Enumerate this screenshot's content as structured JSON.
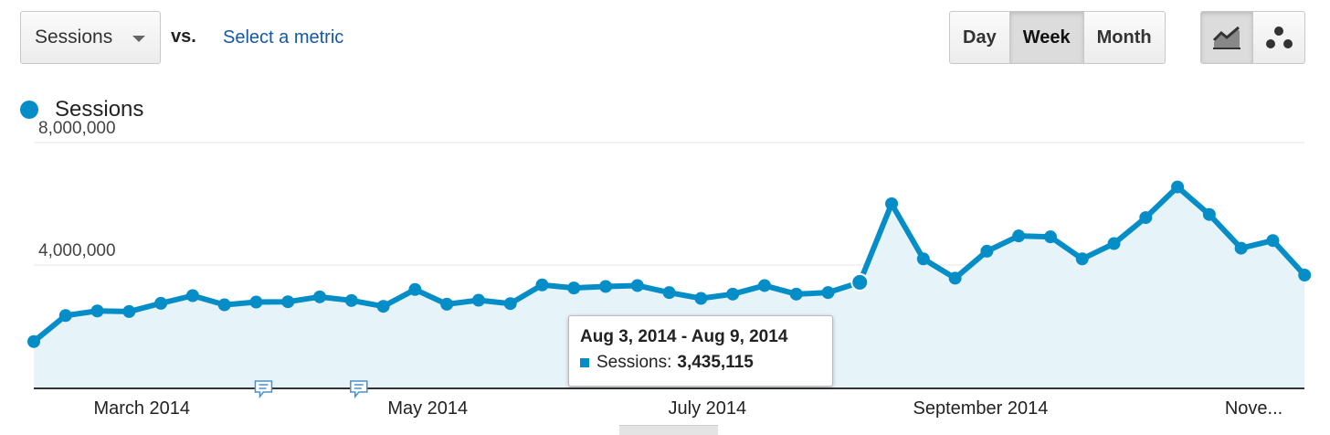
{
  "controls": {
    "metric_dropdown": "Sessions",
    "vs_label": "vs.",
    "select_metric": "Select a metric",
    "granularity": [
      {
        "label": "Day",
        "active": false
      },
      {
        "label": "Week",
        "active": true
      },
      {
        "label": "Month",
        "active": false
      }
    ],
    "view_modes": [
      {
        "icon": "line-chart-icon",
        "active": true
      },
      {
        "icon": "motion-chart-icon",
        "active": false
      }
    ]
  },
  "colors": {
    "series": "#058dc7",
    "area": "#e6f4fa",
    "grid": "#e4e4e4"
  },
  "tooltip": {
    "title": "Aug 3, 2014 - Aug 9, 2014",
    "series_label": "Sessions:",
    "value": "3,435,115"
  },
  "chart_data": {
    "type": "area",
    "title": "",
    "legend": {
      "label": "Sessions",
      "position": "top-left"
    },
    "y_ticks": [
      "8,000,000",
      "4,000,000"
    ],
    "y_tick_values": [
      8000000,
      4000000
    ],
    "ylim": [
      0,
      8000000
    ],
    "x_tick_labels": [
      "March 2014",
      "May 2014",
      "July 2014",
      "September 2014",
      "Nove..."
    ],
    "x_tick_weeks": [
      3.4,
      12.4,
      21.2,
      29.8,
      38.4
    ],
    "grid": true,
    "annotation_weeks": [
      7,
      10
    ],
    "highlight_index": 26,
    "series": [
      {
        "name": "Sessions",
        "values": [
          1500000,
          2350000,
          2500000,
          2480000,
          2750000,
          3000000,
          2700000,
          2790000,
          2800000,
          2960000,
          2840000,
          2650000,
          3200000,
          2720000,
          2850000,
          2740000,
          3350000,
          3250000,
          3300000,
          3330000,
          3100000,
          2910000,
          3050000,
          3330000,
          3050000,
          3100000,
          3435115,
          6000000,
          4200000,
          3570000,
          4450000,
          4950000,
          4920000,
          4200000,
          4700000,
          5550000,
          6550000,
          5650000,
          4550000,
          4800000,
          3670000
        ]
      }
    ]
  }
}
